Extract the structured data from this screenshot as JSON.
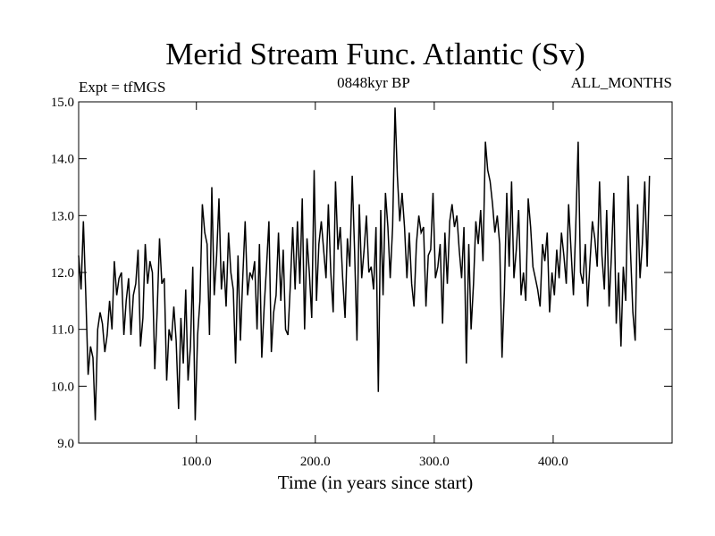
{
  "chart_data": {
    "type": "line",
    "title": "Merid Stream Func. Atlantic (Sv)",
    "subtitle_left": "Expt = tfMGS",
    "subtitle_center": "0848kyr BP",
    "subtitle_right": "ALL_MONTHS",
    "xlabel": "Time (in years since start)",
    "ylabel": "",
    "xlim": [
      1,
      500
    ],
    "ylim": [
      9.0,
      15.0
    ],
    "x_ticks": [
      100,
      200,
      300,
      400
    ],
    "x_tick_labels": [
      "100.0",
      "200.0",
      "300.0",
      "400.0"
    ],
    "y_ticks": [
      9,
      10,
      11,
      12,
      13,
      14,
      15
    ],
    "y_tick_labels": [
      "9.0",
      "10.0",
      "11.0",
      "12.0",
      "13.0",
      "14.0",
      "15.0"
    ],
    "grid": false,
    "series": [
      {
        "name": "Merid Stream Func. Atlantic",
        "x_start": 1,
        "x_step": 2,
        "values": [
          12.3,
          11.7,
          12.9,
          11.6,
          10.2,
          10.7,
          10.5,
          9.4,
          11.0,
          11.3,
          11.1,
          10.6,
          10.9,
          11.5,
          11.0,
          12.2,
          11.6,
          11.9,
          12.0,
          10.9,
          11.5,
          11.9,
          10.9,
          11.6,
          11.8,
          12.4,
          10.7,
          11.2,
          12.5,
          11.8,
          12.2,
          12.0,
          10.3,
          11.3,
          12.6,
          11.8,
          11.9,
          10.1,
          11.0,
          10.8,
          11.4,
          10.8,
          9.6,
          11.2,
          10.4,
          11.7,
          10.1,
          10.7,
          12.1,
          9.4,
          10.9,
          11.5,
          13.2,
          12.7,
          12.5,
          10.9,
          13.5,
          11.6,
          12.3,
          13.3,
          11.7,
          12.2,
          11.4,
          12.7,
          12.0,
          11.7,
          10.4,
          12.3,
          10.8,
          11.9,
          12.9,
          11.6,
          12.0,
          11.9,
          12.2,
          11.0,
          12.5,
          10.5,
          11.4,
          12.1,
          12.9,
          10.6,
          11.3,
          11.6,
          12.7,
          11.5,
          12.4,
          11.0,
          10.9,
          11.8,
          12.8,
          11.7,
          12.9,
          11.8,
          13.3,
          11.0,
          12.6,
          12.0,
          11.2,
          13.8,
          11.5,
          12.5,
          12.9,
          12.4,
          11.9,
          13.2,
          12.0,
          11.3,
          13.6,
          12.4,
          12.8,
          11.9,
          11.2,
          12.6,
          12.1,
          13.7,
          12.4,
          10.8,
          13.2,
          11.9,
          12.4,
          13.0,
          12.0,
          12.1,
          11.7,
          12.8,
          9.9,
          13.1,
          11.6,
          13.4,
          12.8,
          11.9,
          12.8,
          14.9,
          13.7,
          12.9,
          13.4,
          12.8,
          11.9,
          12.7,
          11.8,
          11.4,
          12.5,
          13.0,
          12.7,
          12.8,
          11.4,
          12.3,
          12.4,
          13.4,
          11.9,
          12.1,
          12.5,
          11.1,
          12.7,
          11.8,
          12.9,
          13.2,
          12.8,
          13.0,
          12.4,
          11.9,
          12.8,
          10.4,
          12.5,
          11.0,
          11.8,
          12.9,
          12.5,
          13.1,
          12.2,
          14.3,
          13.8,
          13.6,
          13.2,
          12.7,
          13.0,
          12.5,
          10.5,
          11.7,
          13.4,
          12.1,
          13.6,
          11.9,
          12.4,
          13.1,
          11.6,
          12.0,
          11.5,
          13.3,
          12.8,
          12.1,
          11.9,
          11.7,
          11.4,
          12.5,
          12.2,
          12.7,
          11.3,
          12.0,
          11.6,
          12.4,
          11.9,
          12.7,
          12.3,
          11.8,
          13.2,
          12.4,
          11.6,
          12.8,
          14.3,
          12.0,
          11.8,
          12.5,
          11.4,
          12.2,
          12.9,
          12.6,
          12.1,
          13.6,
          12.3,
          11.7,
          13.1,
          11.4,
          12.3,
          13.4,
          11.1,
          12.0,
          10.7,
          12.1,
          11.5,
          13.7,
          12.4,
          11.3,
          10.8,
          13.2,
          11.9,
          12.5,
          13.6,
          12.1,
          13.7
        ]
      }
    ]
  }
}
